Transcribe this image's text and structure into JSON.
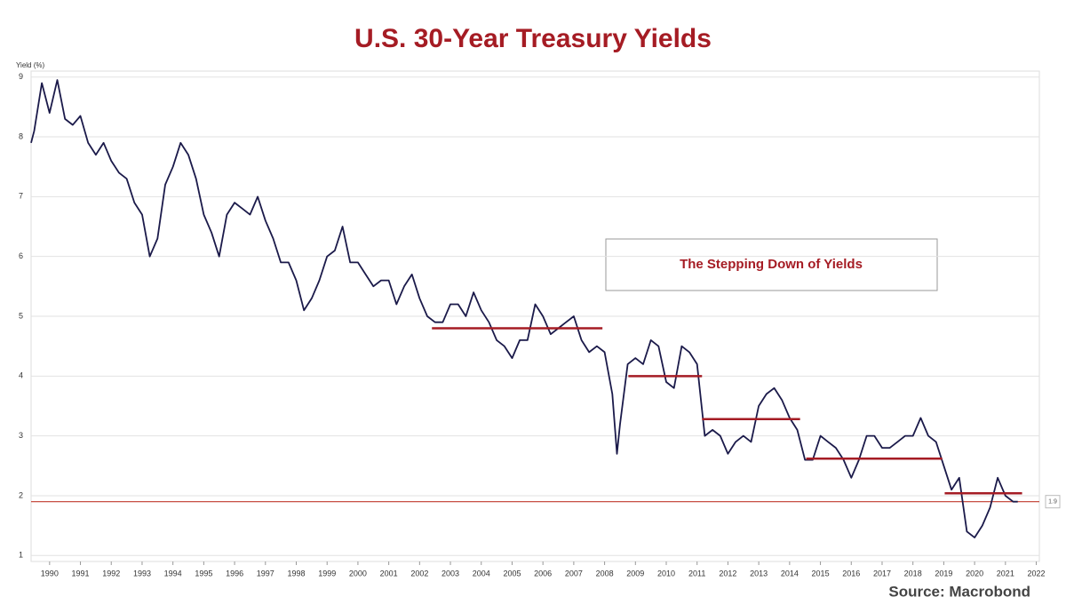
{
  "chart_data": {
    "type": "line",
    "title": "U.S. 30-Year Treasury Yields",
    "y_axis_label": "Yield (%)",
    "source": "Source: Macrobond",
    "annotation": "The Stepping Down of Yields",
    "xlim": [
      1989.9,
      2022.6
    ],
    "ylim": [
      0.9,
      9.1
    ],
    "yticks": [
      1,
      2,
      3,
      4,
      5,
      6,
      7,
      8,
      9
    ],
    "xticks": [
      {
        "value": 1990.5,
        "label": "1990"
      },
      {
        "value": 1991.5,
        "label": "1991"
      },
      {
        "value": 1992.5,
        "label": "1992"
      },
      {
        "value": 1993.5,
        "label": "1993"
      },
      {
        "value": 1994.5,
        "label": "1994"
      },
      {
        "value": 1995.5,
        "label": "1995"
      },
      {
        "value": 1996.5,
        "label": "1996"
      },
      {
        "value": 1997.5,
        "label": "1997"
      },
      {
        "value": 1998.5,
        "label": "1998"
      },
      {
        "value": 1999.5,
        "label": "1999"
      },
      {
        "value": 2000.5,
        "label": "2000"
      },
      {
        "value": 2001.5,
        "label": "2001"
      },
      {
        "value": 2002.5,
        "label": "2002"
      },
      {
        "value": 2003.5,
        "label": "2003"
      },
      {
        "value": 2004.5,
        "label": "2004"
      },
      {
        "value": 2005.5,
        "label": "2005"
      },
      {
        "value": 2006.5,
        "label": "2006"
      },
      {
        "value": 2007.5,
        "label": "2007"
      },
      {
        "value": 2008.5,
        "label": "2008"
      },
      {
        "value": 2009.5,
        "label": "2009"
      },
      {
        "value": 2010.5,
        "label": "2010"
      },
      {
        "value": 2011.5,
        "label": "2011"
      },
      {
        "value": 2012.5,
        "label": "2012"
      },
      {
        "value": 2013.5,
        "label": "2013"
      },
      {
        "value": 2014.5,
        "label": "2014"
      },
      {
        "value": 2015.5,
        "label": "2015"
      },
      {
        "value": 2016.5,
        "label": "2016"
      },
      {
        "value": 2017.5,
        "label": "2017"
      },
      {
        "value": 2018.5,
        "label": "2018"
      },
      {
        "value": 2019.5,
        "label": "2019"
      },
      {
        "value": 2020.5,
        "label": "2020"
      },
      {
        "value": 2021.5,
        "label": "2021"
      },
      {
        "value": 2022.5,
        "label": "2022"
      }
    ],
    "grid": true,
    "reference_line": {
      "value": 1.9,
      "label": 1.9,
      "color": "#c0392b"
    },
    "steps": {
      "color": "#a51c24",
      "segments": [
        {
          "x": [
            2002.9,
            2008.43
          ],
          "value": 4.8
        },
        {
          "x": [
            2009.27,
            2011.66
          ],
          "value": 4.0
        },
        {
          "x": [
            2011.66,
            2014.84
          ],
          "value": 3.28
        },
        {
          "x": [
            2015.04,
            2019.45
          ],
          "value": 2.62
        },
        {
          "x": [
            2019.53,
            2022.04
          ],
          "value": 2.04
        }
      ]
    },
    "series": [
      {
        "name": "U.S. 30-Year Treasury Yield",
        "color": "#1b1a4a",
        "x": [
          1989.9,
          1990.0,
          1990.25,
          1990.5,
          1990.75,
          1991.0,
          1991.25,
          1991.5,
          1991.75,
          1992.0,
          1992.25,
          1992.5,
          1992.75,
          1993.0,
          1993.25,
          1993.5,
          1993.75,
          1994.0,
          1994.25,
          1994.5,
          1994.75,
          1995.0,
          1995.25,
          1995.5,
          1995.75,
          1996.0,
          1996.25,
          1996.5,
          1996.75,
          1997.0,
          1997.25,
          1997.5,
          1997.75,
          1998.0,
          1998.25,
          1998.5,
          1998.75,
          1999.0,
          1999.25,
          1999.5,
          1999.75,
          2000.0,
          2000.25,
          2000.5,
          2000.75,
          2001.0,
          2001.25,
          2001.5,
          2001.75,
          2002.0,
          2002.25,
          2002.5,
          2002.75,
          2003.0,
          2003.25,
          2003.5,
          2003.75,
          2004.0,
          2004.25,
          2004.5,
          2004.75,
          2005.0,
          2005.25,
          2005.5,
          2005.75,
          2006.0,
          2006.25,
          2006.5,
          2006.75,
          2007.0,
          2007.25,
          2007.5,
          2007.75,
          2008.0,
          2008.25,
          2008.5,
          2008.75,
          2008.9,
          2009.0,
          2009.25,
          2009.5,
          2009.75,
          2010.0,
          2010.25,
          2010.5,
          2010.75,
          2011.0,
          2011.25,
          2011.5,
          2011.75,
          2012.0,
          2012.25,
          2012.5,
          2012.75,
          2013.0,
          2013.25,
          2013.5,
          2013.75,
          2014.0,
          2014.25,
          2014.5,
          2014.75,
          2015.0,
          2015.25,
          2015.5,
          2015.75,
          2016.0,
          2016.25,
          2016.5,
          2016.75,
          2017.0,
          2017.25,
          2017.5,
          2017.75,
          2018.0,
          2018.25,
          2018.5,
          2018.75,
          2019.0,
          2019.25,
          2019.5,
          2019.75,
          2020.0,
          2020.25,
          2020.5,
          2020.75,
          2021.0,
          2021.25,
          2021.5,
          2021.75,
          2021.9
        ],
        "values": [
          7.9,
          8.1,
          8.9,
          8.4,
          8.95,
          8.3,
          8.2,
          8.35,
          7.9,
          7.7,
          7.9,
          7.6,
          7.4,
          7.3,
          6.9,
          6.7,
          6.0,
          6.3,
          7.2,
          7.5,
          7.9,
          7.7,
          7.3,
          6.7,
          6.4,
          6.0,
          6.7,
          6.9,
          6.8,
          6.7,
          7.0,
          6.6,
          6.3,
          5.9,
          5.9,
          5.6,
          5.1,
          5.3,
          5.6,
          6.0,
          6.1,
          6.5,
          5.9,
          5.9,
          5.7,
          5.5,
          5.6,
          5.6,
          5.2,
          5.5,
          5.7,
          5.3,
          5.0,
          4.9,
          4.9,
          5.2,
          5.2,
          5.0,
          5.4,
          5.1,
          4.9,
          4.6,
          4.5,
          4.3,
          4.6,
          4.6,
          5.2,
          5.0,
          4.7,
          4.8,
          4.9,
          5.0,
          4.6,
          4.4,
          4.5,
          4.4,
          3.7,
          2.7,
          3.2,
          4.2,
          4.3,
          4.2,
          4.6,
          4.5,
          3.9,
          3.8,
          4.5,
          4.4,
          4.2,
          3.0,
          3.1,
          3.0,
          2.7,
          2.9,
          3.0,
          2.9,
          3.5,
          3.7,
          3.8,
          3.6,
          3.3,
          3.1,
          2.6,
          2.6,
          3.0,
          2.9,
          2.8,
          2.6,
          2.3,
          2.6,
          3.0,
          3.0,
          2.8,
          2.8,
          2.9,
          3.0,
          3.0,
          3.3,
          3.0,
          2.9,
          2.5,
          2.1,
          2.3,
          1.4,
          1.3,
          1.5,
          1.8,
          2.3,
          2.0,
          1.9,
          1.9
        ]
      }
    ]
  }
}
